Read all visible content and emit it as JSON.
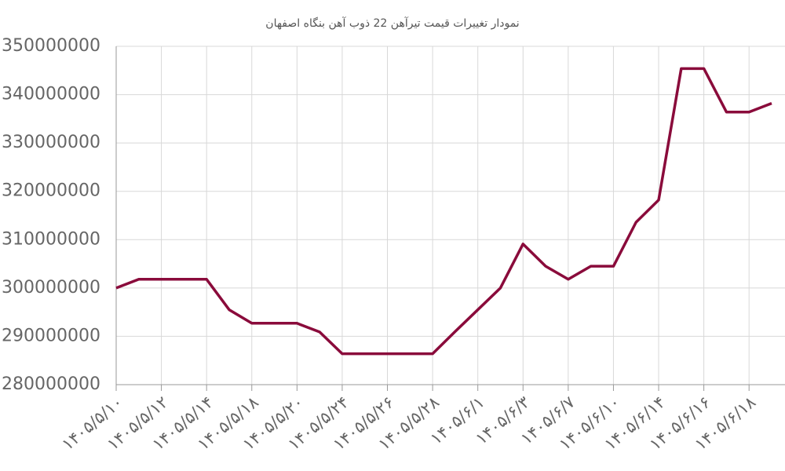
{
  "chart_data": {
    "type": "line",
    "title": "نمودار تغییرات قیمت تیرآهن 22 ذوب آهن بنگاه اصفهان",
    "categories": [
      "۱۴۰۵/۵/۱۰",
      null,
      "۱۴۰۵/۵/۱۲",
      null,
      "۱۴۰۵/۵/۱۴",
      null,
      "۱۴۰۵/۵/۱۸",
      null,
      "۱۴۰۵/۵/۲۰",
      null,
      "۱۴۰۵/۵/۲۴",
      null,
      "۱۴۰۵/۵/۲۶",
      null,
      "۱۴۰۵/۵/۲۸",
      null,
      "۱۴۰۵/۶/۱",
      null,
      "۱۴۰۵/۶/۳",
      null,
      "۱۴۰۵/۶/۷",
      null,
      "۱۴۰۵/۶/۱۰",
      null,
      "۱۴۰۵/۶/۱۴",
      null,
      "۱۴۰۵/۶/۱۶",
      null,
      "۱۴۰۵/۶/۱۸",
      null
    ],
    "series": [
      {
        "color": "#8a0b3b",
        "values": [
          300000000,
          301800000,
          301800000,
          301800000,
          301800000,
          295500000,
          292700000,
          292700000,
          292700000,
          290900000,
          286400000,
          286400000,
          286400000,
          286400000,
          286400000,
          291000000,
          295500000,
          300000000,
          309100000,
          304500000,
          301800000,
          304500000,
          304500000,
          313600000,
          318200000,
          345400000,
          345400000,
          336400000,
          336400000,
          338200000
        ]
      }
    ],
    "ylim": [
      280000000,
      350000000
    ],
    "yticks": [
      280000000,
      290000000,
      300000000,
      310000000,
      320000000,
      330000000,
      340000000,
      350000000
    ],
    "grid": true
  }
}
